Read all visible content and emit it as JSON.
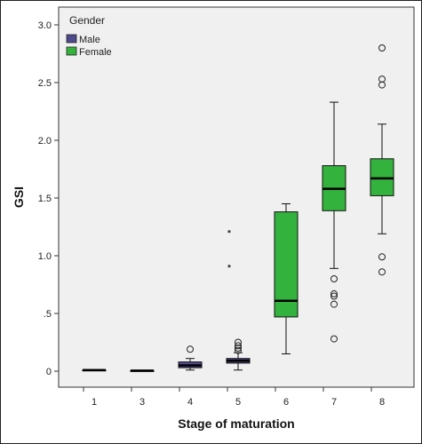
{
  "chart_data": {
    "type": "boxplot",
    "xlabel": "Stage of maturation",
    "ylabel": "GSI",
    "ylim": [
      -0.05,
      3.05
    ],
    "yticks": [
      0,
      0.5,
      1.0,
      1.5,
      2.0,
      2.5,
      3.0
    ],
    "ytick_labels": [
      "0",
      ".5",
      "1.0",
      "1.5",
      "2.0",
      "2.5",
      "3.0"
    ],
    "categories": [
      "1",
      "3",
      "4",
      "5",
      "6",
      "7",
      "8"
    ],
    "legend": {
      "title": "Gender",
      "position": "top-left"
    },
    "grid": false,
    "series": [
      {
        "name": "Male",
        "color": "#4f4a8c"
      },
      {
        "name": "Female",
        "color": "#33b33d"
      }
    ],
    "boxes": [
      {
        "category": "1",
        "series": "Male",
        "min": 0.01,
        "q1": 0.01,
        "median": 0.01,
        "q3": 0.01,
        "max": 0.01,
        "outliers": [],
        "extremes": []
      },
      {
        "category": "3",
        "series": "Male",
        "min": 0.005,
        "q1": 0.005,
        "median": 0.005,
        "q3": 0.005,
        "max": 0.005,
        "outliers": [],
        "extremes": []
      },
      {
        "category": "4",
        "series": "Male",
        "min": 0.01,
        "q1": 0.03,
        "median": 0.05,
        "q3": 0.08,
        "max": 0.11,
        "outliers": [
          0.19
        ],
        "extremes": []
      },
      {
        "category": "5",
        "series": "Male",
        "min": 0.01,
        "q1": 0.07,
        "median": 0.09,
        "q3": 0.11,
        "max": 0.16,
        "outliers": [
          0.18,
          0.2,
          0.22,
          0.25
        ],
        "extremes": [
          0.91,
          1.21
        ]
      },
      {
        "category": "6",
        "series": "Female",
        "min": 0.15,
        "q1": 0.47,
        "median": 0.61,
        "q3": 1.38,
        "max": 1.45,
        "outliers": [],
        "extremes": []
      },
      {
        "category": "7",
        "series": "Female",
        "min": 0.89,
        "q1": 1.39,
        "median": 1.58,
        "q3": 1.78,
        "max": 2.33,
        "outliers": [
          0.28,
          0.58,
          0.65,
          0.67,
          0.8
        ],
        "extremes": []
      },
      {
        "category": "8",
        "series": "Female",
        "min": 1.19,
        "q1": 1.52,
        "median": 1.67,
        "q3": 1.84,
        "max": 2.14,
        "outliers": [
          0.86,
          0.99,
          2.48,
          2.53,
          2.8
        ],
        "extremes": []
      }
    ]
  }
}
